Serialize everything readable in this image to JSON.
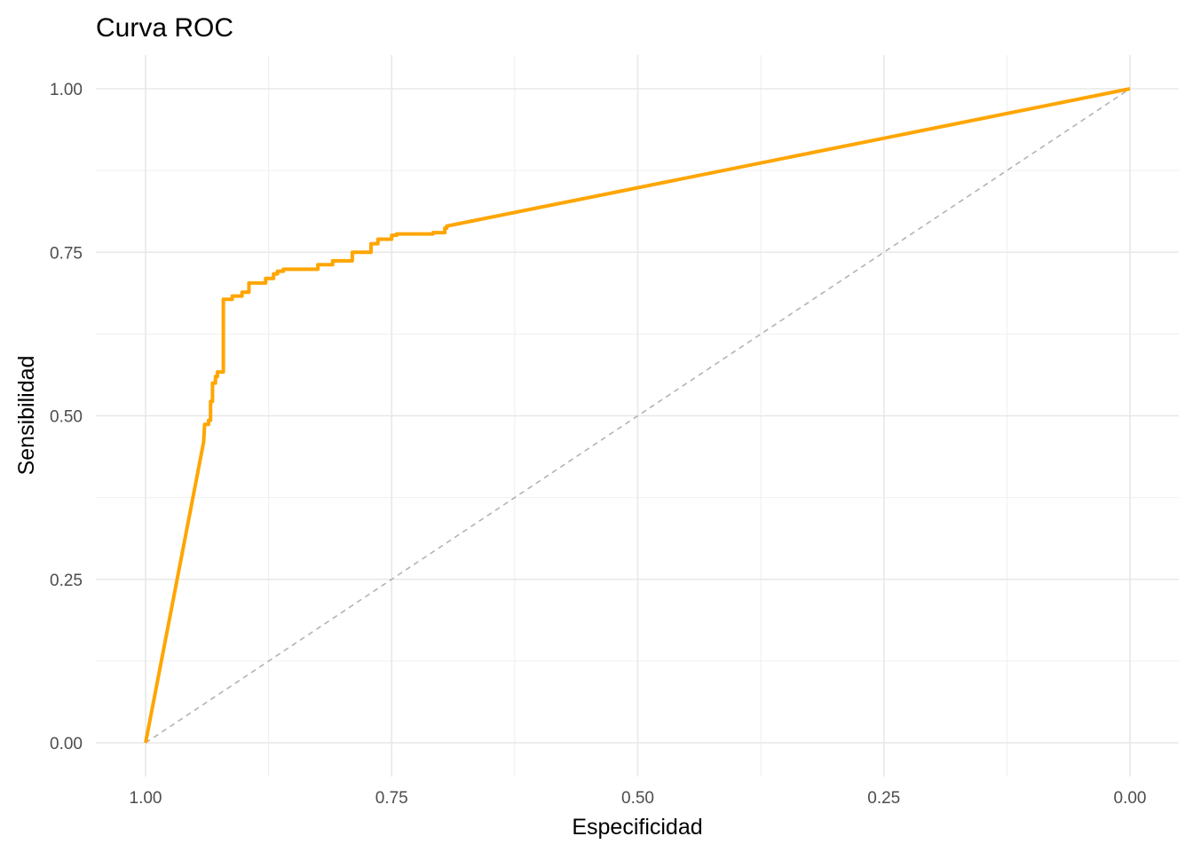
{
  "chart_data": {
    "type": "line",
    "title": "Curva ROC",
    "xlabel": "Especificidad",
    "ylabel": "Sensibilidad",
    "x_reversed": true,
    "xlim": [
      1.0,
      0.0
    ],
    "ylim": [
      0.0,
      1.0
    ],
    "x_ticks": [
      1.0,
      0.75,
      0.5,
      0.25,
      0.0
    ],
    "x_tick_labels": [
      "1.00",
      "0.75",
      "0.50",
      "0.25",
      "0.00"
    ],
    "y_ticks": [
      0.0,
      0.25,
      0.5,
      0.75,
      1.0
    ],
    "y_tick_labels": [
      "0.00",
      "0.25",
      "0.50",
      "0.75",
      "1.00"
    ],
    "grid": true,
    "legend": "none",
    "series": [
      {
        "color": "#FFA500",
        "line_style": "solid",
        "x": [
          1.0,
          0.941,
          0.94,
          0.936,
          0.936,
          0.934,
          0.934,
          0.932,
          0.932,
          0.929,
          0.929,
          0.927,
          0.927,
          0.921,
          0.921,
          0.912,
          0.912,
          0.902,
          0.902,
          0.895,
          0.895,
          0.878,
          0.878,
          0.87,
          0.87,
          0.866,
          0.866,
          0.86,
          0.86,
          0.825,
          0.825,
          0.81,
          0.81,
          0.79,
          0.79,
          0.771,
          0.771,
          0.764,
          0.764,
          0.75,
          0.75,
          0.745,
          0.745,
          0.708,
          0.708,
          0.696,
          0.696,
          0.694,
          0.694,
          0.0
        ],
        "y": [
          0.0,
          0.46,
          0.487,
          0.487,
          0.493,
          0.493,
          0.522,
          0.522,
          0.55,
          0.55,
          0.56,
          0.56,
          0.567,
          0.567,
          0.678,
          0.678,
          0.683,
          0.683,
          0.689,
          0.689,
          0.703,
          0.703,
          0.71,
          0.71,
          0.717,
          0.717,
          0.721,
          0.721,
          0.724,
          0.724,
          0.731,
          0.731,
          0.737,
          0.737,
          0.75,
          0.75,
          0.763,
          0.763,
          0.77,
          0.77,
          0.776,
          0.776,
          0.778,
          0.778,
          0.78,
          0.78,
          0.787,
          0.787,
          0.79,
          1.0
        ]
      },
      {
        "color": "#b3b3b3",
        "line_style": "dashed",
        "x": [
          1.0,
          0.0
        ],
        "y": [
          0.0,
          1.0
        ]
      }
    ]
  }
}
